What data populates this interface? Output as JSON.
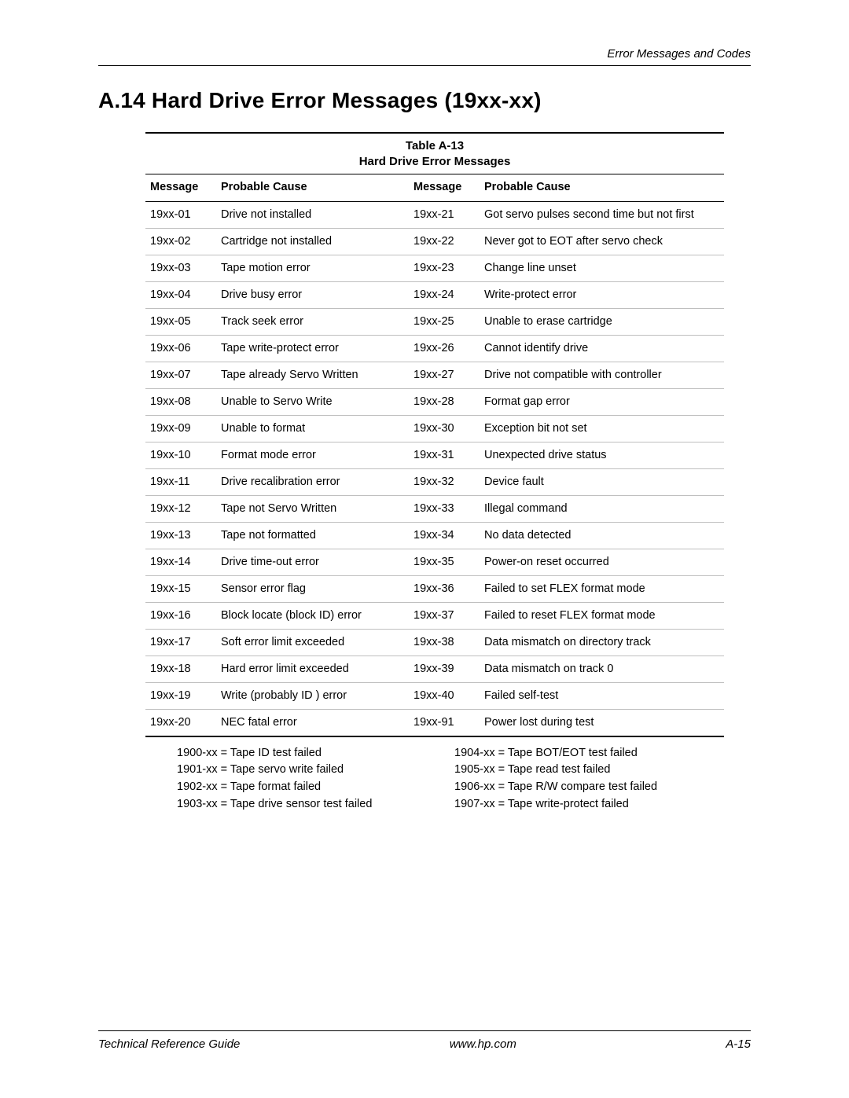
{
  "header": {
    "running_head": "Error Messages and Codes"
  },
  "section": {
    "title": "A.14 Hard Drive Error Messages (19xx-xx)"
  },
  "table": {
    "number": "Table A-13",
    "title": "Hard Drive Error Messages",
    "columns": [
      "Message",
      "Probable Cause",
      "Message",
      "Probable Cause"
    ],
    "rows": [
      [
        "19xx-01",
        "Drive not installed",
        "19xx-21",
        "Got servo pulses second time but not first"
      ],
      [
        "19xx-02",
        "Cartridge not installed",
        "19xx-22",
        "Never got to EOT after servo check"
      ],
      [
        "19xx-03",
        "Tape motion error",
        "19xx-23",
        "Change line unset"
      ],
      [
        "19xx-04",
        "Drive busy error",
        "19xx-24",
        "Write-protect error"
      ],
      [
        "19xx-05",
        "Track seek error",
        "19xx-25",
        "Unable to erase cartridge"
      ],
      [
        "19xx-06",
        "Tape write-protect error",
        "19xx-26",
        "Cannot identify drive"
      ],
      [
        "19xx-07",
        "Tape already Servo Written",
        "19xx-27",
        "Drive not compatible with controller"
      ],
      [
        "19xx-08",
        "Unable to Servo Write",
        "19xx-28",
        "Format gap error"
      ],
      [
        "19xx-09",
        "Unable to format",
        "19xx-30",
        "Exception bit not set"
      ],
      [
        "19xx-10",
        "Format mode error",
        "19xx-31",
        "Unexpected drive status"
      ],
      [
        "19xx-11",
        "Drive recalibration error",
        "19xx-32",
        "Device fault"
      ],
      [
        "19xx-12",
        "Tape not Servo Written",
        "19xx-33",
        "Illegal command"
      ],
      [
        "19xx-13",
        "Tape not formatted",
        "19xx-34",
        "No data detected"
      ],
      [
        "19xx-14",
        "Drive time-out error",
        "19xx-35",
        "Power-on reset occurred"
      ],
      [
        "19xx-15",
        "Sensor error flag",
        "19xx-36",
        "Failed to set FLEX format mode"
      ],
      [
        "19xx-16",
        "Block locate (block ID) error",
        "19xx-37",
        "Failed to reset FLEX format mode"
      ],
      [
        "19xx-17",
        "Soft error limit exceeded",
        "19xx-38",
        "Data mismatch on directory track"
      ],
      [
        "19xx-18",
        "Hard error limit exceeded",
        "19xx-39",
        "Data mismatch on track 0"
      ],
      [
        "19xx-19",
        "Write (probably ID ) error",
        "19xx-40",
        "Failed self-test"
      ],
      [
        "19xx-20",
        "NEC fatal error",
        "19xx-91",
        "Power lost during test"
      ]
    ],
    "footnotes_left": [
      "1900-xx = Tape ID test failed",
      "1901-xx = Tape servo write failed",
      "1902-xx = Tape format failed",
      "1903-xx = Tape drive sensor test failed"
    ],
    "footnotes_right": [
      "1904-xx = Tape BOT/EOT test failed",
      "1905-xx = Tape read test failed",
      "1906-xx = Tape R/W compare test failed",
      "1907-xx = Tape write-protect failed"
    ]
  },
  "footer": {
    "left": "Technical Reference Guide",
    "center": "www.hp.com",
    "right": "A-15"
  }
}
